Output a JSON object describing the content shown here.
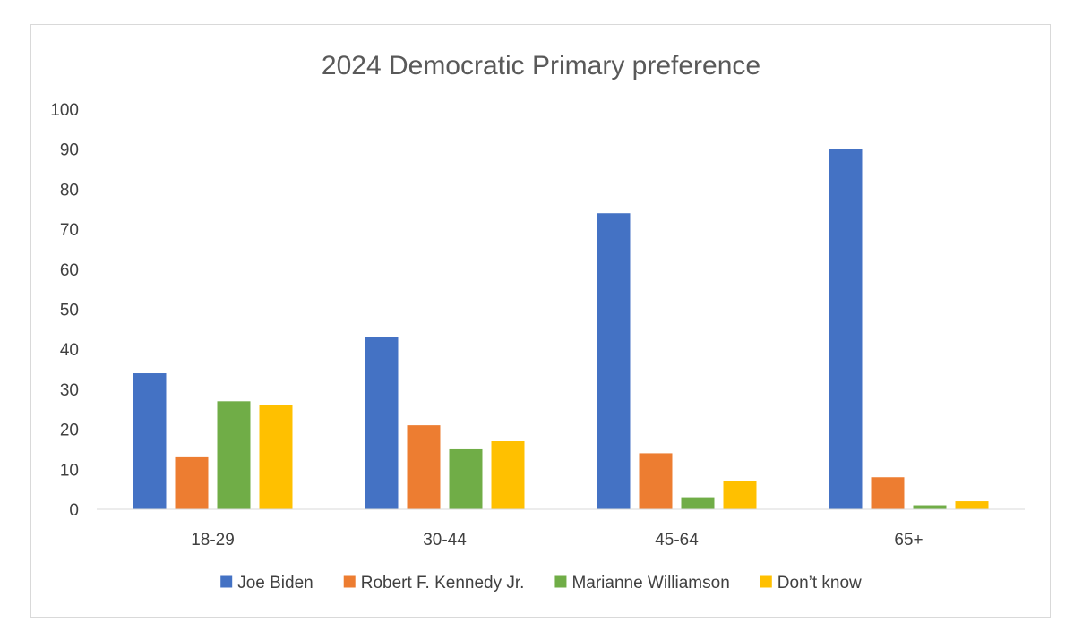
{
  "chart_data": {
    "type": "bar",
    "title": "2024 Democratic Primary preference",
    "xlabel": "",
    "ylabel": "",
    "categories": [
      "18-29",
      "30-44",
      "45-64",
      "65+"
    ],
    "series": [
      {
        "name": "Joe Biden",
        "values": [
          34,
          43,
          74,
          90
        ],
        "color": "#4472C4"
      },
      {
        "name": "Robert F. Kennedy Jr.",
        "values": [
          13,
          21,
          14,
          8
        ],
        "color": "#ED7D31"
      },
      {
        "name": "Marianne Williamson",
        "values": [
          27,
          15,
          3,
          1
        ],
        "color": "#70AD47"
      },
      {
        "name": "Don’t know",
        "values": [
          26,
          17,
          7,
          2
        ],
        "color": "#FFC000"
      }
    ],
    "ylim": [
      0,
      100
    ],
    "yticks": [
      0,
      10,
      20,
      30,
      40,
      50,
      60,
      70,
      80,
      90,
      100
    ],
    "grid": false,
    "legend_position": "bottom"
  }
}
